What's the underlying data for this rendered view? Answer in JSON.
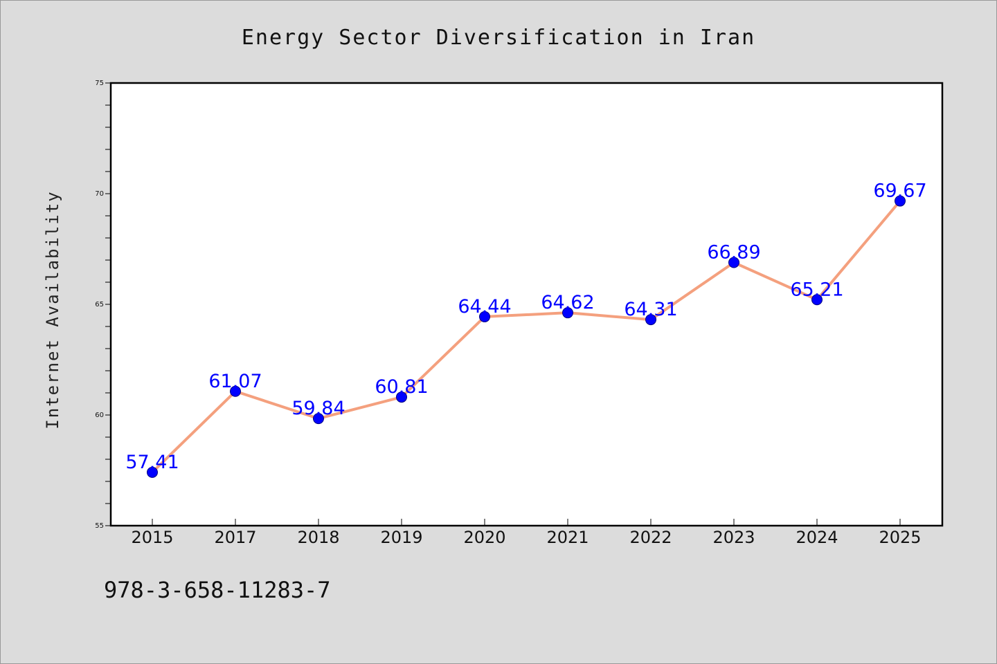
{
  "colors": {
    "background": "#dcdcdc",
    "plot_area": "#ffffff",
    "line": "#f4a07e",
    "marker": "#0000ff",
    "data_label": "#0000ff"
  },
  "footnote": "978-3-658-11283-7",
  "chart_data": {
    "type": "line",
    "title": "Energy Sector Diversification in Iran",
    "xlabel": "",
    "ylabel": "Internet Availability",
    "categories": [
      "2015",
      "2017",
      "2018",
      "2019",
      "2020",
      "2021",
      "2022",
      "2023",
      "2024",
      "2025"
    ],
    "series": [
      {
        "values": [
          57.41,
          61.07,
          59.84,
          60.81,
          64.44,
          64.62,
          64.31,
          66.89,
          65.21,
          69.67
        ],
        "data_labels": [
          "57.41",
          "61.07",
          "59.84",
          "60.81",
          "64.44",
          "64.62",
          "64.31",
          "66.89",
          "65.21",
          "69.67"
        ]
      }
    ],
    "ylim": [
      55,
      75
    ],
    "yticks": [
      "55",
      "60",
      "65",
      "70",
      "75"
    ],
    "grid": false,
    "legend": "none"
  }
}
